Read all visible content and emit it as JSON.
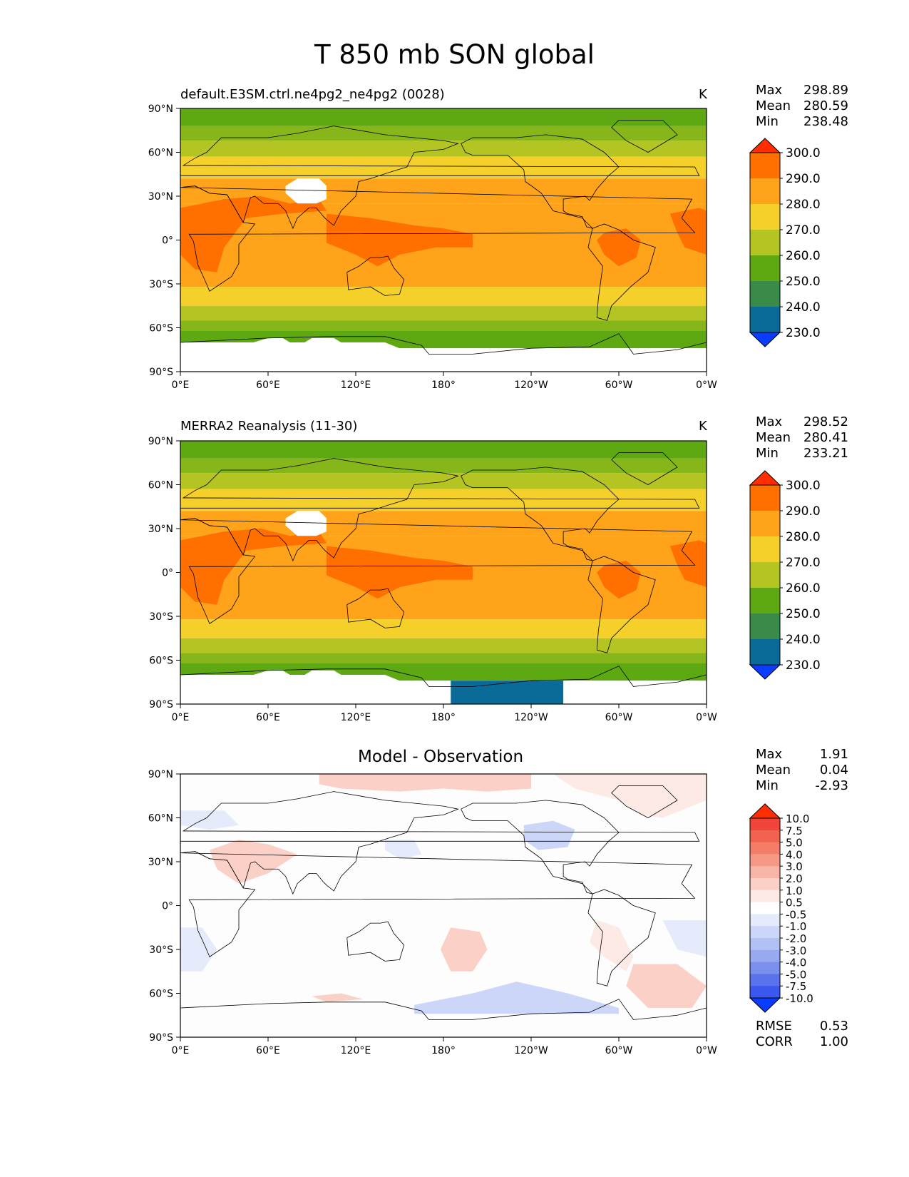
{
  "figure": {
    "title": "T 850 mb SON global"
  },
  "axes": {
    "x_ticks": [
      "0°E",
      "60°E",
      "120°E",
      "180°",
      "120°W",
      "60°W",
      "0°W"
    ],
    "y_ticks": [
      "90°N",
      "60°N",
      "30°N",
      "0°",
      "30°S",
      "60°S",
      "90°S"
    ]
  },
  "panels": [
    {
      "id": "test",
      "title": "default.E3SM.ctrl.ne4pg2_ne4pg2 (0028)",
      "units": "K",
      "stats": {
        "max_label": "Max",
        "max": "298.89",
        "mean_label": "Mean",
        "mean": "280.59",
        "min_label": "Min",
        "min": "238.48"
      },
      "colorbar": {
        "labels": [
          "300.0",
          "290.0",
          "280.0",
          "270.0",
          "260.0",
          "250.0",
          "240.0",
          "230.0"
        ],
        "colors": [
          "#ff2d00",
          "#ff7000",
          "#ffa31a",
          "#f5cf2a",
          "#b4c422",
          "#5ea912",
          "#3a8a4a",
          "#0a6b99",
          "#0a3cff"
        ]
      }
    },
    {
      "id": "ref",
      "title": "MERRA2 Reanalysis (11-30)",
      "units": "K",
      "stats": {
        "max_label": "Max",
        "max": "298.52",
        "mean_label": "Mean",
        "mean": "280.41",
        "min_label": "Min",
        "min": "233.21"
      },
      "colorbar": {
        "labels": [
          "300.0",
          "290.0",
          "280.0",
          "270.0",
          "260.0",
          "250.0",
          "240.0",
          "230.0"
        ],
        "colors": [
          "#ff2d00",
          "#ff7000",
          "#ffa31a",
          "#f5cf2a",
          "#b4c422",
          "#5ea912",
          "#3a8a4a",
          "#0a6b99",
          "#0a3cff"
        ]
      }
    },
    {
      "id": "diff",
      "title": "Model - Observation",
      "units": "",
      "stats": {
        "max_label": "Max",
        "max": "1.91",
        "mean_label": "Mean",
        "mean": "0.04",
        "min_label": "Min",
        "min": "-2.93"
      },
      "metrics": {
        "rmse_label": "RMSE",
        "rmse": "0.53",
        "corr_label": "CORR",
        "corr": "1.00"
      },
      "colorbar": {
        "labels": [
          "10.0",
          "7.5",
          "5.0",
          "4.0",
          "3.0",
          "2.0",
          "1.0",
          "0.5",
          "-0.5",
          "-1.0",
          "-2.0",
          "-3.0",
          "-4.0",
          "-5.0",
          "-7.5",
          "-10.0"
        ],
        "colors": [
          "#ff2d00",
          "#f0453a",
          "#f2634f",
          "#f47d68",
          "#f69886",
          "#f8b4a6",
          "#fbd0c6",
          "#fdeae4",
          "#ffffff",
          "#e6ebfb",
          "#ccd6f8",
          "#b2c1f4",
          "#97a9f0",
          "#7b90ed",
          "#5a72ec",
          "#3a57ee",
          "#0a3cff"
        ]
      }
    }
  ]
}
